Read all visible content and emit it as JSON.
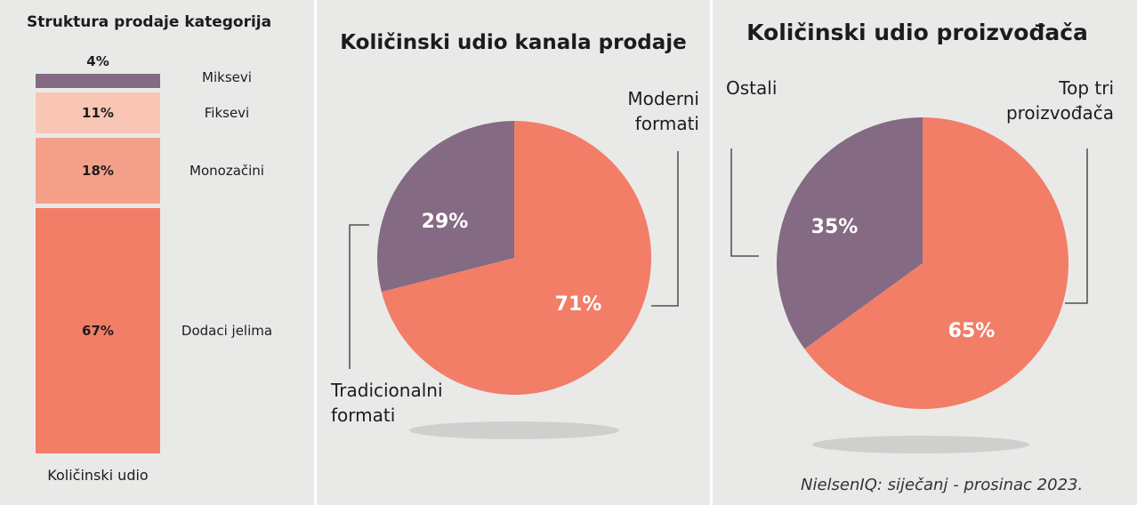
{
  "colors": {
    "purple": "#846a82",
    "coral": "#f27e68",
    "salmon": "#f5a08a",
    "peach": "#f9c5b5",
    "background": "#e9eae8"
  },
  "chart_data": [
    {
      "type": "bar",
      "stacked": true,
      "title": "Struktura prodaje kategorija",
      "xlabel": "Količinski udio",
      "categories": [
        "Količinski udio"
      ],
      "series": [
        {
          "name": "Miksevi",
          "value": 4,
          "label": "4%",
          "color": "#846a82"
        },
        {
          "name": "Fiksevi",
          "value": 11,
          "label": "11%",
          "color": "#f9c5b5"
        },
        {
          "name": "Monozačini",
          "value": 18,
          "label": "18%",
          "color": "#f5a08a"
        },
        {
          "name": "Dodaci jelima",
          "value": 67,
          "label": "67%",
          "color": "#f27e68"
        }
      ]
    },
    {
      "type": "pie",
      "title": "Količinski udio kanala prodaje",
      "slices": [
        {
          "name": "Moderni formati",
          "value": 71,
          "label": "71%",
          "color": "#f27e68"
        },
        {
          "name": "Tradicionalni formati",
          "value": 29,
          "label": "29%",
          "color": "#846a82"
        }
      ]
    },
    {
      "type": "pie",
      "title": "Količinski udio proizvođača",
      "slices": [
        {
          "name": "Top tri proizvođača",
          "value": 65,
          "label": "65%",
          "color": "#f27e68"
        },
        {
          "name": "Ostali",
          "value": 35,
          "label": "35%",
          "color": "#846a82"
        }
      ]
    }
  ],
  "labels": {
    "pie1_modern_line1": "Moderni",
    "pie1_modern_line2": "formati",
    "pie1_trad_line1": "Tradicionalni",
    "pie1_trad_line2": "formati",
    "pie2_top_line1": "Top tri",
    "pie2_top_line2": "proizvođača",
    "pie2_other": "Ostali"
  },
  "source": "NielsenIQ: siječanj - prosinac 2023."
}
